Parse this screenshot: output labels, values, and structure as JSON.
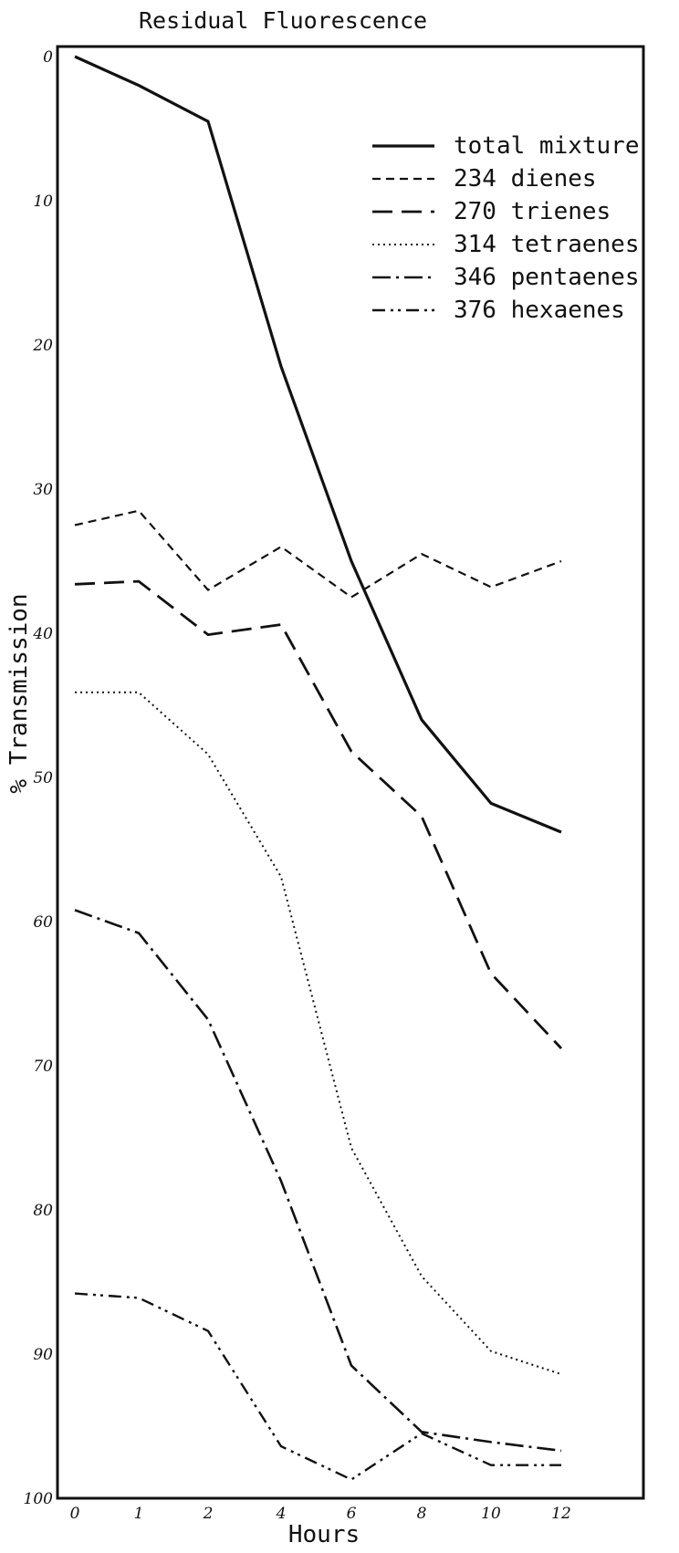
{
  "chart_data": {
    "type": "line",
    "title": "Residual Fluorescence",
    "xlabel": "Hours",
    "ylabel": "% Transmission",
    "xlim": [
      0,
      12
    ],
    "ylim": [
      0,
      100
    ],
    "y_inverted": true,
    "x_ticks": [
      "0",
      "1",
      "2",
      "4",
      "6",
      "8",
      "10",
      "12"
    ],
    "y_ticks": [
      "0",
      "10",
      "20",
      "30",
      "40",
      "50",
      "60",
      "70",
      "80",
      "90",
      "100"
    ],
    "grid": false,
    "legend_position": "top-right",
    "series": [
      {
        "name": "total mixture",
        "style": "solid",
        "points": [
          [
            0,
            0
          ],
          [
            1,
            2
          ],
          [
            2,
            4.5
          ],
          [
            4,
            21.5
          ],
          [
            6,
            35
          ],
          [
            8,
            46
          ],
          [
            10,
            51.8
          ],
          [
            12,
            53.8
          ]
        ]
      },
      {
        "name": "234 dienes",
        "style": "dashed",
        "points": [
          [
            0,
            32.5
          ],
          [
            1,
            31.5
          ],
          [
            2,
            37
          ],
          [
            4,
            34
          ],
          [
            6,
            37.5
          ],
          [
            8,
            34.5
          ],
          [
            10,
            36.8
          ],
          [
            12,
            35
          ]
        ]
      },
      {
        "name": "270 trienes",
        "style": "long-dash",
        "points": [
          [
            0,
            36.6
          ],
          [
            1,
            36.4
          ],
          [
            2,
            40.1
          ],
          [
            4,
            39.4
          ],
          [
            6,
            48.2
          ],
          [
            8,
            52.7
          ],
          [
            10,
            63.6
          ],
          [
            12,
            68.8
          ]
        ]
      },
      {
        "name": "314 tetraenes",
        "style": "dotted",
        "points": [
          [
            0,
            44.1
          ],
          [
            1,
            44.1
          ],
          [
            2,
            48.4
          ],
          [
            4,
            56.9
          ],
          [
            6,
            75.7
          ],
          [
            8,
            84.6
          ],
          [
            10,
            89.8
          ],
          [
            12,
            91.4
          ]
        ]
      },
      {
        "name": "346 pentaenes",
        "style": "dash-dot",
        "points": [
          [
            0,
            59.2
          ],
          [
            1,
            60.8
          ],
          [
            2,
            66.8
          ],
          [
            4,
            78
          ],
          [
            6,
            90.8
          ],
          [
            8,
            95.4
          ],
          [
            10,
            96.1
          ],
          [
            12,
            96.7
          ]
        ]
      },
      {
        "name": "376 hexaenes",
        "style": "dash-dot-dot",
        "points": [
          [
            0,
            85.8
          ],
          [
            1,
            86.1
          ],
          [
            2,
            88.4
          ],
          [
            4,
            96.4
          ],
          [
            6,
            98.7
          ],
          [
            8,
            95.5
          ],
          [
            10,
            97.7
          ],
          [
            12,
            97.7
          ]
        ]
      }
    ]
  }
}
